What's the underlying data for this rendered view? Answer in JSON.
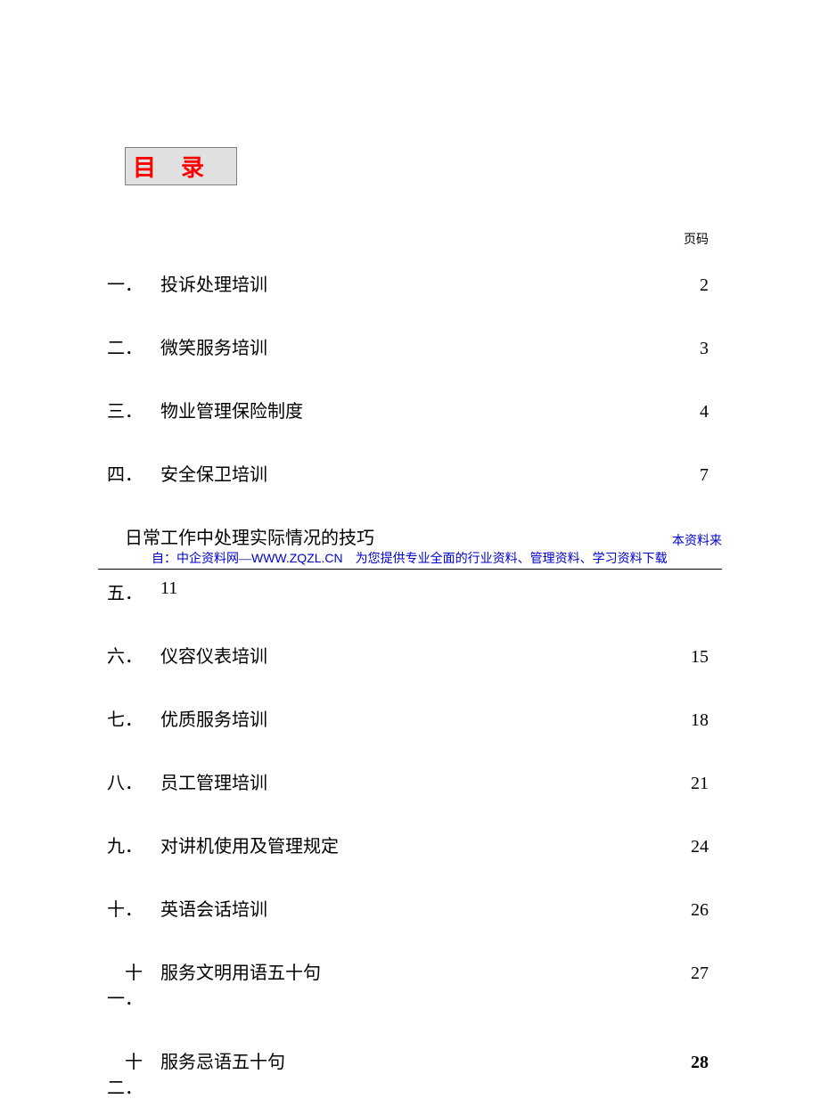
{
  "title": "目录",
  "page_header": "页码",
  "colors": {
    "title_text": "#ff0000",
    "title_bg": "#e0e0e0",
    "title_border": "#808080",
    "body_text": "#000000",
    "attribution_text": "#0000cc",
    "underline": "#000000",
    "background": "#ffffff"
  },
  "typography": {
    "title_fontsize": 26,
    "body_fontsize": 20,
    "small_fontsize": 14,
    "title_letter_spacing": 28
  },
  "toc": [
    {
      "num": "一．",
      "title": "投诉处理培训",
      "page": "2",
      "bold": false
    },
    {
      "num": "二．",
      "title": "微笑服务培训",
      "page": "3",
      "bold": false
    },
    {
      "num": "三．",
      "title": "物业管理保险制度",
      "page": "4",
      "bold": false
    },
    {
      "num": "四．",
      "title": "安全保卫培训",
      "page": "7",
      "bold": false
    }
  ],
  "section_five": {
    "num": "五．",
    "title": "日常工作中处理实际情况的技巧",
    "page": "11",
    "attribution_prefix": "本资料来",
    "attribution_line_a": "自：中企资料网—",
    "attribution_url": "WWW.ZQZL.CN",
    "attribution_line_b": "　为您提供专业全面的行业资料、管理资料、学习资料下载"
  },
  "toc_after": [
    {
      "num": "六．",
      "title": "仪容仪表培训",
      "page": "15",
      "bold": false
    },
    {
      "num": "七．",
      "title": "优质服务培训",
      "page": "18",
      "bold": false
    },
    {
      "num": "八．",
      "title": "员工管理培训",
      "page": "21",
      "bold": false
    },
    {
      "num": "九．",
      "title": "对讲机使用及管理规定",
      "page": "24",
      "bold": false
    },
    {
      "num": "十．",
      "title": "英语会话培训",
      "page": "26",
      "bold": false
    },
    {
      "num": "十一．",
      "title": "服务文明用语五十句",
      "page": "27",
      "bold": false
    },
    {
      "num": "十二．",
      "title": "服务忌语五十句",
      "page": "28",
      "bold": true
    }
  ]
}
